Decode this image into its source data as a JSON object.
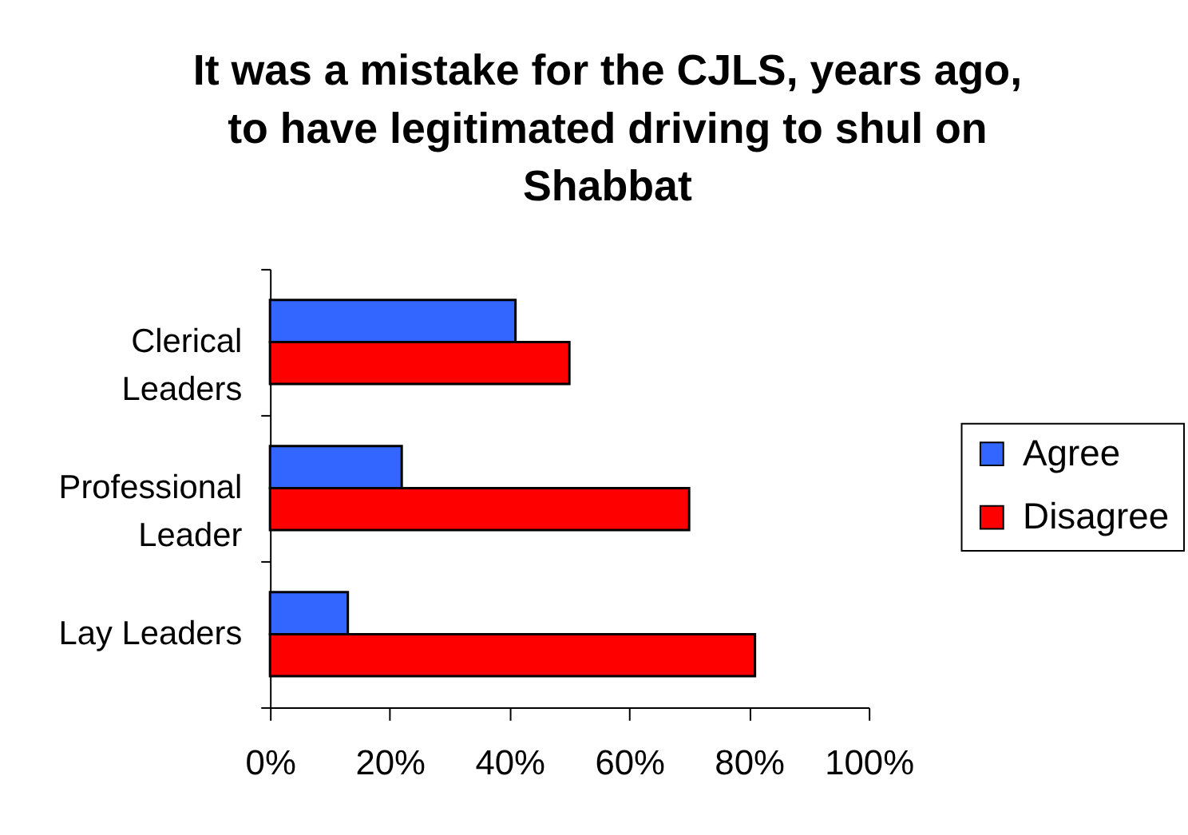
{
  "chart_data": {
    "type": "bar",
    "orientation": "horizontal",
    "title": "It was a mistake for the CJLS, years ago, to have legitimated driving to shul on Shabbat",
    "categories": [
      "Clerical Leaders",
      "Professional Leader",
      "Lay Leaders"
    ],
    "series": [
      {
        "name": "Agree",
        "color": "#3366ff",
        "values": [
          41,
          22,
          13
        ]
      },
      {
        "name": "Disagree",
        "color": "#ff0000",
        "values": [
          50,
          70,
          81
        ]
      }
    ],
    "xlim": [
      0,
      100
    ],
    "xticks": [
      {
        "value": 0,
        "label": "0%"
      },
      {
        "value": 20,
        "label": "20%"
      },
      {
        "value": 40,
        "label": "40%"
      },
      {
        "value": 60,
        "label": "60%"
      },
      {
        "value": 80,
        "label": "80%"
      },
      {
        "value": 100,
        "label": "100%"
      }
    ],
    "grid": false,
    "legend": "right"
  }
}
